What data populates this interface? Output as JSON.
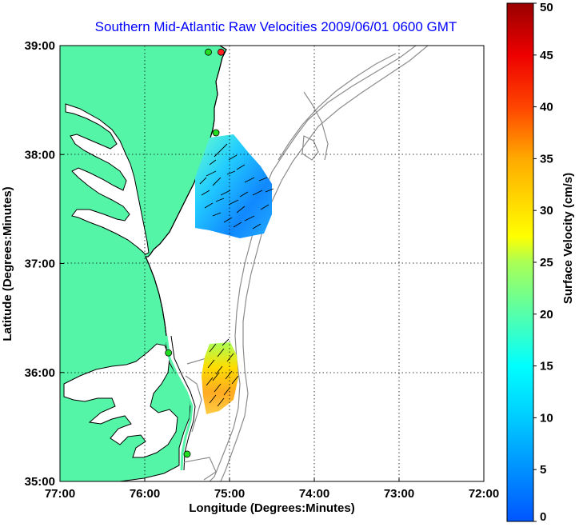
{
  "map": {
    "title": "Southern Mid-Atlantic Raw Velocities 2009/06/01 0600 GMT",
    "xlabel": "Longitude (Degrees:Minutes)",
    "ylabel": "Latitude (Degrees:Minutes)",
    "x_ticks": [
      "77:00",
      "76:00",
      "75:00",
      "74:00",
      "73:00",
      "72:00"
    ],
    "y_ticks": [
      "39:00",
      "38:00",
      "37:00",
      "36:00",
      "35:00"
    ],
    "lon_range": [
      -77,
      -72
    ],
    "lat_range": [
      35,
      39
    ],
    "grid": true,
    "colors": {
      "land": "#55f5a8",
      "coast": "#000000",
      "bathymetry": "#8c8c8c",
      "grid": "#000000",
      "station": "#22dd22",
      "station_active": "#ff2020",
      "title": "#0000ff"
    }
  },
  "colorbar": {
    "label": "Surface Velocity (cm/s)",
    "ticks": [
      "0",
      "5",
      "10",
      "15",
      "20",
      "25",
      "30",
      "35",
      "40",
      "45",
      "50"
    ],
    "range": [
      0,
      50
    ],
    "colormap": "jet"
  },
  "stations": [
    {
      "lon": -75.1,
      "lat": 38.94,
      "active": true
    },
    {
      "lon": -75.25,
      "lat": 38.94,
      "active": false
    },
    {
      "lon": -75.16,
      "lat": 38.2,
      "active": false
    },
    {
      "lon": -75.72,
      "lat": 36.18,
      "active": false
    },
    {
      "lon": -75.5,
      "lat": 35.25,
      "active": false
    }
  ],
  "velocity_regions": [
    {
      "name": "north",
      "lon": [
        -75.7,
        -74.6
      ],
      "lat": [
        37.32,
        38.2
      ],
      "speed_cm_s": 10
    },
    {
      "name": "south",
      "lon": [
        -75.3,
        -74.95
      ],
      "lat": [
        35.75,
        36.28
      ],
      "speed_cm_s": 30
    }
  ]
}
